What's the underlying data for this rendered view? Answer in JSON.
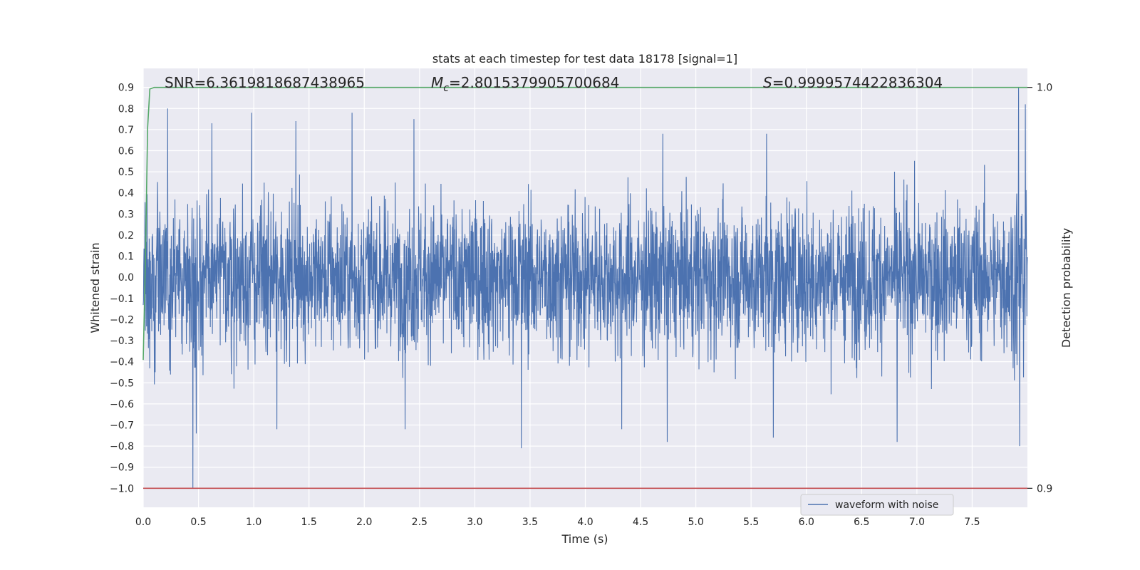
{
  "chart_data": {
    "type": "line",
    "title": "stats at each timestep for test data 18178 [signal=1]",
    "xlabel": "Time (s)",
    "ylabel": "Whitened strain",
    "y2label": "Detection probability",
    "xlim": [
      0,
      8.0
    ],
    "ylim": [
      -1.09,
      0.99
    ],
    "y2lim": [
      0.9,
      1.0
    ],
    "x_ticks": [
      "0.0",
      "0.5",
      "1.0",
      "1.5",
      "2.0",
      "2.5",
      "3.0",
      "3.5",
      "4.0",
      "4.5",
      "5.0",
      "5.5",
      "6.0",
      "6.5",
      "7.0",
      "7.5"
    ],
    "y_ticks": [
      "0.9",
      "0.8",
      "0.7",
      "0.6",
      "0.5",
      "0.4",
      "0.3",
      "0.2",
      "0.1",
      "0.0",
      "−0.1",
      "−0.2",
      "−0.3",
      "−0.4",
      "−0.5",
      "−0.6",
      "−0.7",
      "−0.8",
      "−0.9",
      "−1.0"
    ],
    "y2_ticks": [
      "1.0",
      "0.9"
    ],
    "grid": true,
    "legend_position": "lower-right",
    "annotations": {
      "snr": "SNR=6.3619818687438965",
      "mc_symbol": "M",
      "mc_sub": "c",
      "mc_value": "=2.8015379905700684",
      "s_symbol": "S",
      "s_value": "=0.9999574422836304"
    },
    "series": [
      {
        "name": "waveform with noise",
        "color": "#4c72b0",
        "axis": "left",
        "description_stats": {
          "x_start": 0.0,
          "x_end": 8.0,
          "typical_amplitude": 0.45,
          "min": -1.0,
          "max": 0.9
        },
        "notable_peaks": [
          {
            "x": 0.22,
            "y": 0.8
          },
          {
            "x": 0.62,
            "y": 0.73
          },
          {
            "x": 0.98,
            "y": 0.78
          },
          {
            "x": 1.38,
            "y": 0.74
          },
          {
            "x": 1.89,
            "y": 0.78
          },
          {
            "x": 2.45,
            "y": 0.75
          },
          {
            "x": 4.7,
            "y": 0.68
          },
          {
            "x": 5.64,
            "y": 0.68
          },
          {
            "x": 7.92,
            "y": 0.9
          },
          {
            "x": 7.98,
            "y": 0.82
          }
        ],
        "notable_troughs": [
          {
            "x": 0.45,
            "y": -1.0
          },
          {
            "x": 0.48,
            "y": -0.74
          },
          {
            "x": 1.21,
            "y": -0.72
          },
          {
            "x": 2.37,
            "y": -0.72
          },
          {
            "x": 3.42,
            "y": -0.81
          },
          {
            "x": 4.33,
            "y": -0.72
          },
          {
            "x": 4.74,
            "y": -0.78
          },
          {
            "x": 5.7,
            "y": -0.76
          },
          {
            "x": 6.82,
            "y": -0.78
          },
          {
            "x": 7.93,
            "y": -0.8
          }
        ]
      },
      {
        "name": "",
        "color": "#55a868",
        "axis": "right",
        "x": [
          0.0,
          0.02,
          0.04,
          0.06,
          0.08,
          0.1,
          0.15,
          8.0
        ],
        "values": [
          0.932,
          0.957,
          0.99,
          0.9996,
          0.9998,
          1.0,
          1.0,
          1.0
        ]
      },
      {
        "name": "",
        "color": "#c44e52",
        "axis": "right",
        "x": [
          0.0,
          8.0
        ],
        "values": [
          0.9,
          0.9
        ]
      }
    ]
  }
}
